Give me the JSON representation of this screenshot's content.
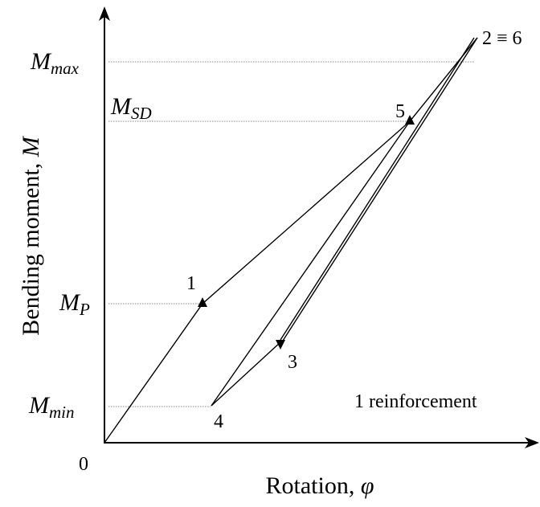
{
  "axes": {
    "y_label": {
      "text": "Bending moment, ",
      "symbol": "M"
    },
    "x_label": {
      "text": "Rotation,  ",
      "symbol": "φ"
    },
    "origin": "0"
  },
  "levels": [
    {
      "main": "M",
      "sub": "max"
    },
    {
      "main": "M",
      "sub": "SD"
    },
    {
      "main": "M",
      "sub": "P"
    },
    {
      "main": "M",
      "sub": "min"
    }
  ],
  "points": [
    "1",
    "2 ≡ 6",
    "3",
    "4",
    "5"
  ],
  "annotation": "1 reinforcement"
}
